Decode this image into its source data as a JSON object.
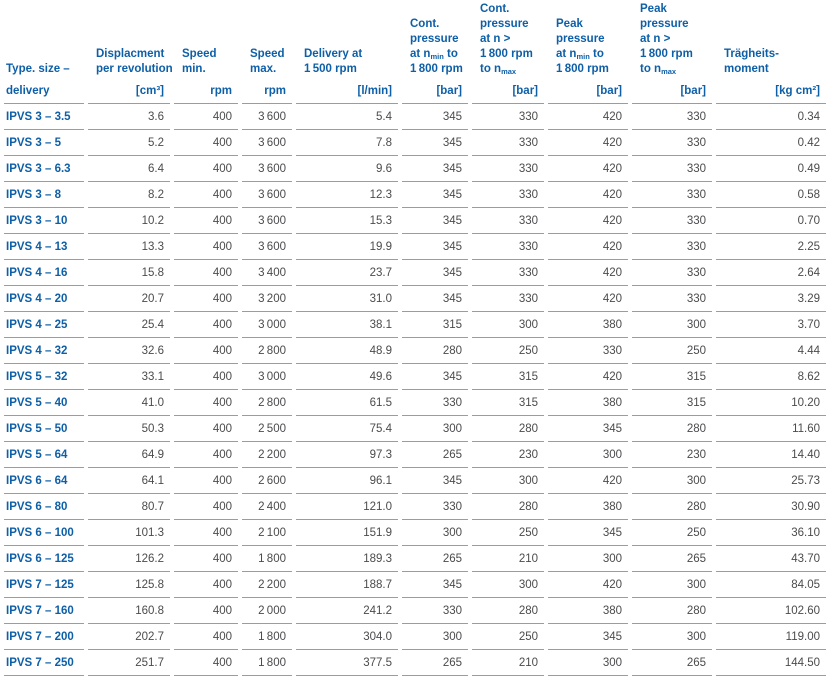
{
  "table": {
    "columns": [
      {
        "id": "type",
        "title_lines": [
          "Type. size –"
        ],
        "unit": "delivery"
      },
      {
        "id": "displacement",
        "title_lines": [
          "Displacment",
          "per revolution"
        ],
        "unit": "[cm³]"
      },
      {
        "id": "speed-min",
        "title_lines": [
          "Speed",
          "min."
        ],
        "unit": "rpm"
      },
      {
        "id": "speed-max",
        "title_lines": [
          "Speed",
          "max."
        ],
        "unit": "rpm"
      },
      {
        "id": "delivery-1500rpm",
        "title_lines": [
          "Delivery at",
          "1 500 rpm"
        ],
        "unit": "[l/min]"
      },
      {
        "id": "cont-pressure-nmin",
        "title_lines": [
          "Cont.",
          "pressure",
          "at n{min} to",
          "1 800 rpm"
        ],
        "unit": "[bar]"
      },
      {
        "id": "cont-pressure-nmax",
        "title_lines": [
          "Cont.",
          "pressure",
          "at n >",
          "1 800 rpm",
          "to n{max}"
        ],
        "unit": "[bar]"
      },
      {
        "id": "peak-pressure-nmin",
        "title_lines": [
          "Peak",
          "pressure",
          "at n{min} to",
          "1 800 rpm"
        ],
        "unit": "[bar]"
      },
      {
        "id": "peak-pressure-nmax",
        "title_lines": [
          "Peak",
          "pressure",
          "at n >",
          "1 800 rpm",
          "to n{max}"
        ],
        "unit": "[bar]"
      },
      {
        "id": "inertia",
        "title_lines": [
          "Trägheits-",
          "moment"
        ],
        "unit": "[kg cm²]"
      }
    ],
    "rows": [
      [
        "IPVS 3 – 3.5",
        "3.6",
        "400",
        "3 600",
        "5.4",
        "345",
        "330",
        "420",
        "330",
        "0.34"
      ],
      [
        "IPVS 3 – 5",
        "5.2",
        "400",
        "3 600",
        "7.8",
        "345",
        "330",
        "420",
        "330",
        "0.42"
      ],
      [
        "IPVS 3 – 6.3",
        "6.4",
        "400",
        "3 600",
        "9.6",
        "345",
        "330",
        "420",
        "330",
        "0.49"
      ],
      [
        "IPVS 3 – 8",
        "8.2",
        "400",
        "3 600",
        "12.3",
        "345",
        "330",
        "420",
        "330",
        "0.58"
      ],
      [
        "IPVS 3 – 10",
        "10.2",
        "400",
        "3 600",
        "15.3",
        "345",
        "330",
        "420",
        "330",
        "0.70"
      ],
      [
        "IPVS 4 – 13",
        "13.3",
        "400",
        "3 600",
        "19.9",
        "345",
        "330",
        "420",
        "330",
        "2.25"
      ],
      [
        "IPVS 4 – 16",
        "15.8",
        "400",
        "3 400",
        "23.7",
        "345",
        "330",
        "420",
        "330",
        "2.64"
      ],
      [
        "IPVS 4 – 20",
        "20.7",
        "400",
        "3 200",
        "31.0",
        "345",
        "330",
        "420",
        "330",
        "3.29"
      ],
      [
        "IPVS 4 – 25",
        "25.4",
        "400",
        "3 000",
        "38.1",
        "315",
        "300",
        "380",
        "300",
        "3.70"
      ],
      [
        "IPVS 4 – 32",
        "32.6",
        "400",
        "2 800",
        "48.9",
        "280",
        "250",
        "330",
        "250",
        "4.44"
      ],
      [
        "IPVS 5 – 32",
        "33.1",
        "400",
        "3 000",
        "49.6",
        "345",
        "315",
        "420",
        "315",
        "8.62"
      ],
      [
        "IPVS 5 – 40",
        "41.0",
        "400",
        "2 800",
        "61.5",
        "330",
        "315",
        "380",
        "315",
        "10.20"
      ],
      [
        "IPVS 5 – 50",
        "50.3",
        "400",
        "2 500",
        "75.4",
        "300",
        "280",
        "345",
        "280",
        "11.60"
      ],
      [
        "IPVS 5 – 64",
        "64.9",
        "400",
        "2 200",
        "97.3",
        "265",
        "230",
        "300",
        "230",
        "14.40"
      ],
      [
        "IPVS 6 – 64",
        "64.1",
        "400",
        "2 600",
        "96.1",
        "345",
        "300",
        "420",
        "300",
        "25.73"
      ],
      [
        "IPVS 6 – 80",
        "80.7",
        "400",
        "2 400",
        "121.0",
        "330",
        "280",
        "380",
        "280",
        "30.90"
      ],
      [
        "IPVS 6 – 100",
        "101.3",
        "400",
        "2 100",
        "151.9",
        "300",
        "250",
        "345",
        "250",
        "36.10"
      ],
      [
        "IPVS 6 – 125",
        "126.2",
        "400",
        "1 800",
        "189.3",
        "265",
        "210",
        "300",
        "265",
        "43.70"
      ],
      [
        "IPVS 7 – 125",
        "125.8",
        "400",
        "2 200",
        "188.7",
        "345",
        "300",
        "420",
        "300",
        "84.05"
      ],
      [
        "IPVS 7 – 160",
        "160.8",
        "400",
        "2 000",
        "241.2",
        "330",
        "280",
        "380",
        "280",
        "102.60"
      ],
      [
        "IPVS 7 – 200",
        "202.7",
        "400",
        "1 800",
        "304.0",
        "300",
        "250",
        "345",
        "300",
        "119.00"
      ],
      [
        "IPVS 7 – 250",
        "251.7",
        "400",
        "1 800",
        "377.5",
        "265",
        "210",
        "300",
        "265",
        "144.50"
      ]
    ],
    "colors": {
      "header_blue": "#0d5fa7",
      "data_text": "#4b4b4d",
      "rule_gray": "#9c9c9c"
    }
  }
}
